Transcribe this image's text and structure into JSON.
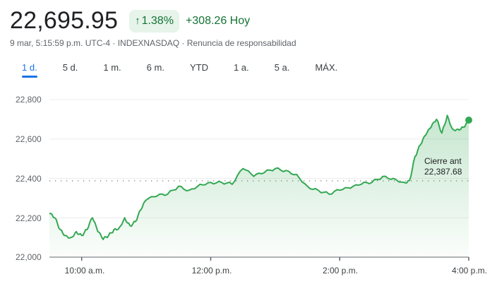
{
  "header": {
    "price": "22,695.95",
    "change_percent": "1.38%",
    "change_arrow_icon": "arrow-up-icon",
    "change_abs": "+308.26 Hoy",
    "meta": "9 mar, 5:15:59 p.m. UTC-4 · INDEXNASDAQ · Renuncia de responsabilidad"
  },
  "colors": {
    "positive": "#137333",
    "positive_bg": "#e6f4ea",
    "line": "#34a853",
    "accent": "#1a73e8"
  },
  "tabs": [
    {
      "label": "1 d.",
      "active": true
    },
    {
      "label": "5 d.",
      "active": false
    },
    {
      "label": "1 m.",
      "active": false
    },
    {
      "label": "6 m.",
      "active": false
    },
    {
      "label": "YTD",
      "active": false
    },
    {
      "label": "1 a.",
      "active": false
    },
    {
      "label": "5 a.",
      "active": false
    },
    {
      "label": "MÁX.",
      "active": false
    }
  ],
  "previous_close": {
    "label": "Cierre ant",
    "value": "22,387.68"
  },
  "chart_data": {
    "type": "area",
    "title": "",
    "xlabel": "",
    "ylabel": "",
    "ylim": [
      22000,
      22800
    ],
    "yticks": [
      "22,800",
      "22,600",
      "22,400",
      "22,200",
      "22,000"
    ],
    "xticks": [
      "10:00 a.m.",
      "12:00 p.m.",
      "2:00 p.m.",
      "4:00 p.m."
    ],
    "grid": true,
    "legend": "none",
    "reference_line": {
      "label": "Cierre ant",
      "value": 22387.68
    },
    "series": [
      {
        "name": "INDEXNASDAQ",
        "x": [
          "9:30",
          "9:35",
          "9:40",
          "9:45",
          "9:50",
          "9:55",
          "10:00",
          "10:05",
          "10:10",
          "10:15",
          "10:20",
          "10:25",
          "10:30",
          "10:35",
          "10:40",
          "10:45",
          "10:50",
          "10:55",
          "11:00",
          "11:10",
          "11:20",
          "11:30",
          "11:40",
          "11:50",
          "12:00",
          "12:10",
          "12:20",
          "12:30",
          "12:40",
          "12:50",
          "13:00",
          "13:10",
          "13:20",
          "13:30",
          "13:40",
          "13:50",
          "14:00",
          "14:10",
          "14:20",
          "14:30",
          "14:40",
          "14:50",
          "15:00",
          "15:05",
          "15:10",
          "15:15",
          "15:20",
          "15:25",
          "15:30",
          "15:35",
          "15:40",
          "15:45",
          "15:50",
          "15:55",
          "16:00"
        ],
        "values": [
          22220,
          22200,
          22140,
          22110,
          22100,
          22130,
          22110,
          22140,
          22200,
          22130,
          22090,
          22110,
          22140,
          22150,
          22200,
          22160,
          22180,
          22240,
          22290,
          22310,
          22320,
          22360,
          22340,
          22370,
          22380,
          22380,
          22370,
          22450,
          22410,
          22430,
          22450,
          22440,
          22420,
          22360,
          22340,
          22320,
          22340,
          22350,
          22370,
          22380,
          22410,
          22400,
          22380,
          22390,
          22510,
          22570,
          22620,
          22660,
          22700,
          22630,
          22720,
          22650,
          22650,
          22660,
          22695.95
        ]
      }
    ]
  }
}
